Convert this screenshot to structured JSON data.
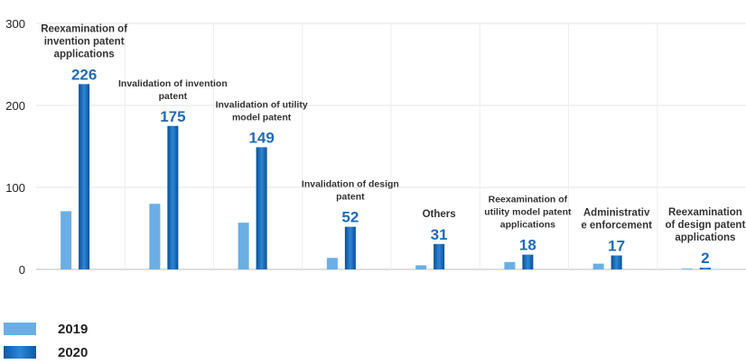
{
  "chart_data": {
    "type": "bar",
    "categories": [
      "Reexamination of invention patent applications",
      "Invalidation of invention patent",
      "Invalidation of utility model patent",
      "Invalidation of design patent",
      "Others",
      "Reexamination of utility model patent applications",
      "Administrative enforcement",
      "Reexamination of design patent applications"
    ],
    "category_lines": [
      [
        "Reexamination of",
        "invention patent",
        "applications"
      ],
      [
        "Invalidation of invention",
        "patent"
      ],
      [
        "Invalidation of utility",
        "model patent"
      ],
      [
        "Invalidation of design",
        "patent"
      ],
      [
        "Others"
      ],
      [
        "Reexamination of",
        "utility model patent",
        "applications"
      ],
      [
        "Administrativ",
        "e enforcement"
      ],
      [
        "Reexamination",
        "of design patent",
        "applications"
      ]
    ],
    "series": [
      {
        "name": "2019",
        "values": [
          71,
          80,
          57,
          14,
          5,
          9,
          7,
          1
        ],
        "color": "#6aaee6"
      },
      {
        "name": "2020",
        "values": [
          226,
          175,
          149,
          52,
          31,
          18,
          17,
          2
        ],
        "color": "#0d5aa7",
        "color_light": "#2e86d6"
      }
    ],
    "data_labels": [
      "226",
      "175",
      "149",
      "52",
      "31",
      "18",
      "17",
      "2"
    ],
    "ylim": [
      0,
      300
    ],
    "yticks": [
      "0",
      "100",
      "200",
      "300"
    ],
    "grid": true,
    "legend_position": "bottom-left",
    "title": "",
    "xlabel": "",
    "ylabel": ""
  }
}
